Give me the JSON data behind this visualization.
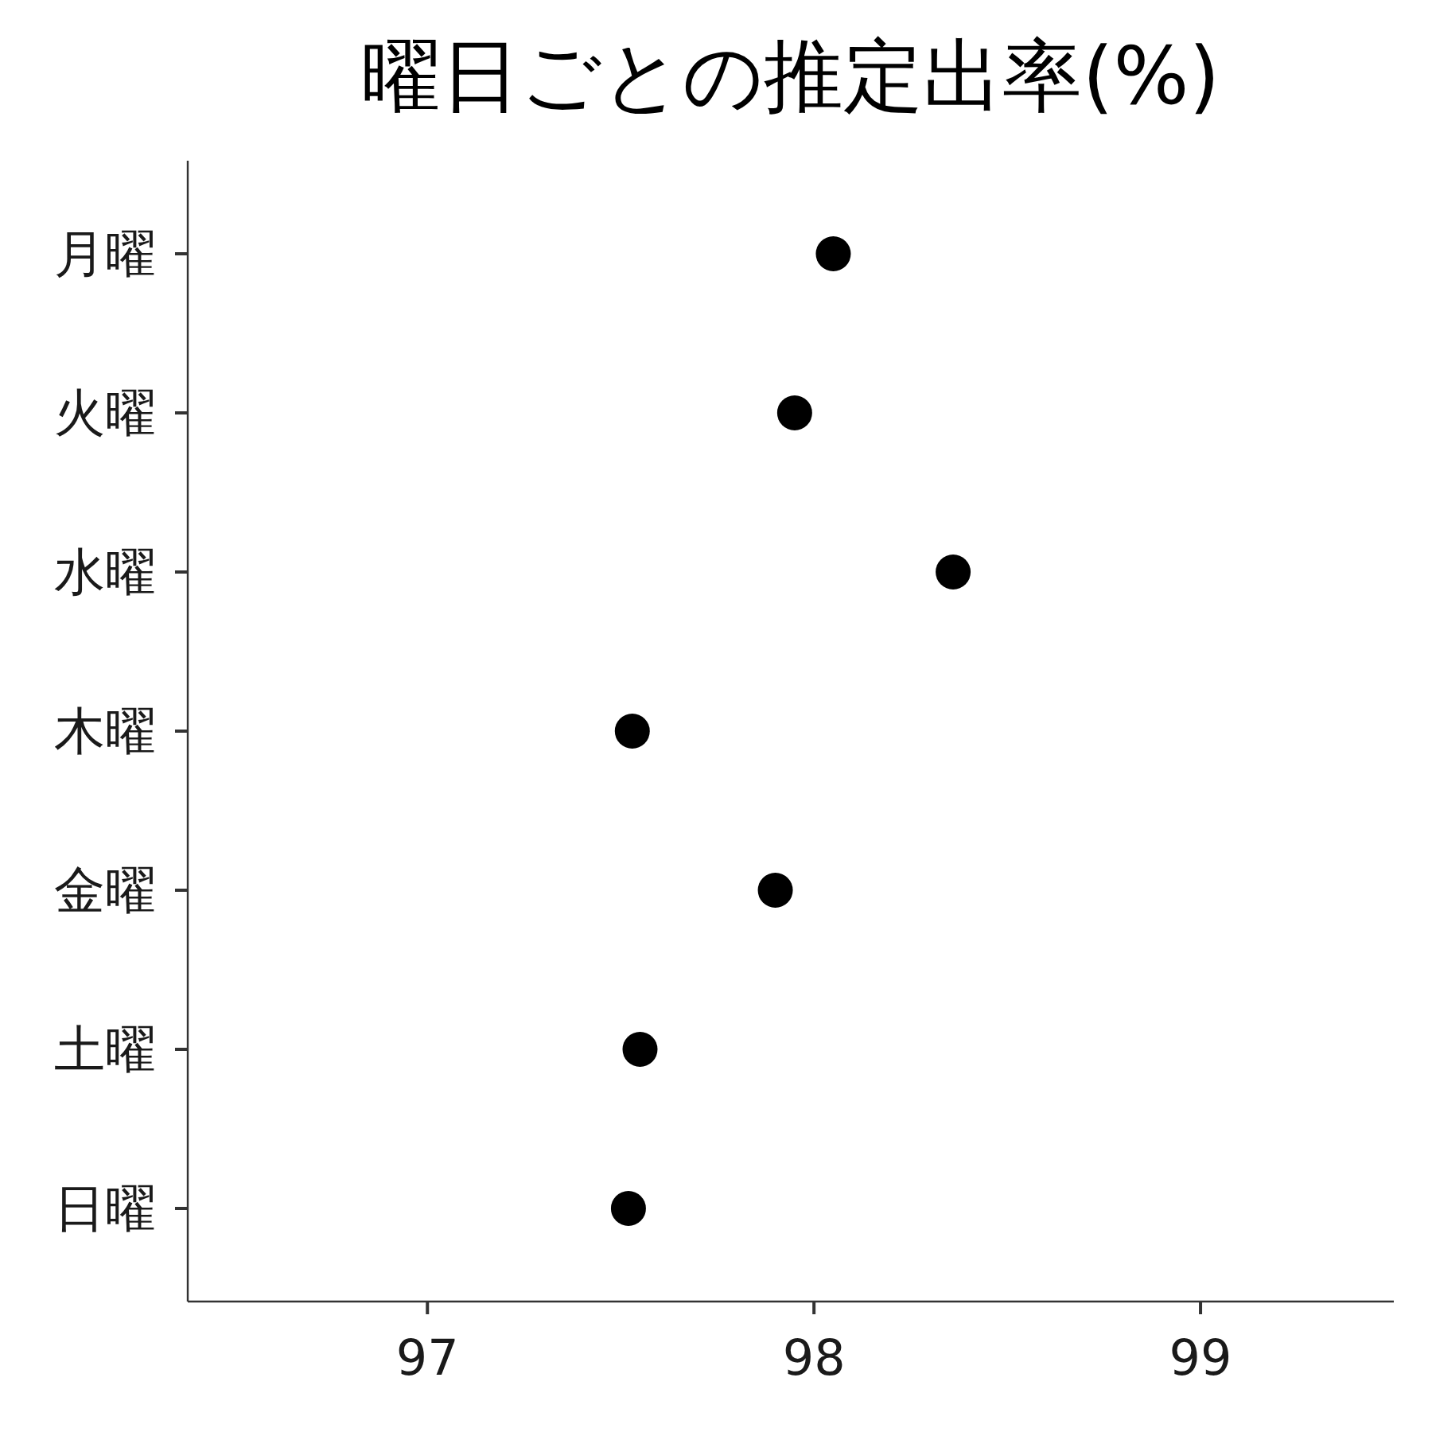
{
  "chart_data": {
    "type": "scatter",
    "orientation": "horizontal",
    "title": "曜日ごとの推定出率(%)",
    "categories": [
      "月曜",
      "火曜",
      "水曜",
      "木曜",
      "金曜",
      "土曜",
      "日曜"
    ],
    "values": [
      98.05,
      97.95,
      98.36,
      97.53,
      97.9,
      97.55,
      97.52
    ],
    "color": "#000000",
    "marker": "circle",
    "xlim": [
      96.38,
      99.5
    ],
    "xticks": [
      97,
      98,
      99
    ]
  }
}
